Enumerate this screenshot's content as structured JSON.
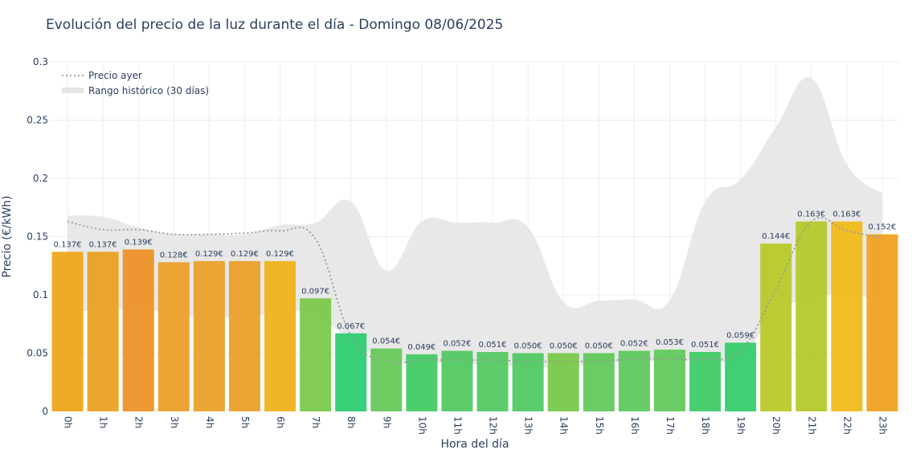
{
  "title": "Evolución del precio de la luz durante el día - Domingo 08/06/2025",
  "chart_data": {
    "type": "bar",
    "title": "Evolución del precio de la luz durante el día - Domingo 08/06/2025",
    "xlabel": "Hora del día",
    "ylabel": "Precio (€/kWh)",
    "ylim": [
      0,
      0.3
    ],
    "yticks": [
      0,
      0.05,
      0.1,
      0.15,
      0.2,
      0.25,
      0.3
    ],
    "ytick_labels": [
      "0",
      "0.05",
      "0.1",
      "0.15",
      "0.2",
      "0.25",
      "0.3"
    ],
    "grid": true,
    "legend_position": "top-left",
    "categories": [
      "0h",
      "1h",
      "2h",
      "3h",
      "4h",
      "5h",
      "6h",
      "7h",
      "8h",
      "9h",
      "10h",
      "11h",
      "12h",
      "13h",
      "14h",
      "15h",
      "16h",
      "17h",
      "18h",
      "19h",
      "20h",
      "21h",
      "22h",
      "23h"
    ],
    "series": [
      {
        "values": [
          0.137,
          0.137,
          0.139,
          0.128,
          0.129,
          0.129,
          0.129,
          0.097,
          0.067,
          0.054,
          0.049,
          0.052,
          0.051,
          0.05,
          0.05,
          0.05,
          0.052,
          0.053,
          0.051,
          0.059,
          0.144,
          0.163,
          0.163,
          0.152
        ],
        "labels": [
          "0.137€",
          "0.137€",
          "0.139€",
          "0.128€",
          "0.129€",
          "0.129€",
          "0.129€",
          "0.097€",
          "0.067€",
          "0.054€",
          "0.049€",
          "0.052€",
          "0.051€",
          "0.050€",
          "0.050€",
          "0.050€",
          "0.052€",
          "0.053€",
          "0.051€",
          "0.059€",
          "0.144€",
          "0.163€",
          "0.163€",
          "0.152€"
        ],
        "colors": [
          "#eea71a",
          "#eaa222",
          "#ec9228",
          "#eba02a",
          "#eaa12a",
          "#eaa02a",
          "#f0b21b",
          "#7bc94a",
          "#2ecc71",
          "#67c95b",
          "#45ca66",
          "#53c962",
          "#55c963",
          "#52c964",
          "#78c84b",
          "#62c95c",
          "#5ec95d",
          "#62c95c",
          "#40cb67",
          "#36cc6b",
          "#b9c92a",
          "#b5c82c",
          "#f0ba1a",
          "#efa221"
        ]
      },
      {
        "name": "Precio ayer",
        "values": [
          0.163,
          0.156,
          0.156,
          0.152,
          0.152,
          0.153,
          0.155,
          0.148,
          0.065,
          0.043,
          0.044,
          0.044,
          0.044,
          0.043,
          0.043,
          0.043,
          0.045,
          0.045,
          0.045,
          0.052,
          0.105,
          0.163,
          0.155,
          0.149
        ]
      },
      {
        "name": "Rango histórico (30 días)",
        "lower": [
          0.087,
          0.086,
          0.089,
          0.083,
          0.081,
          0.081,
          0.084,
          0.084,
          0.06,
          0.045,
          0.042,
          0.041,
          0.04,
          0.038,
          0.038,
          0.041,
          0.043,
          0.043,
          0.044,
          0.046,
          0.085,
          0.097,
          0.101,
          0.094
        ],
        "upper": [
          0.168,
          0.167,
          0.158,
          0.152,
          0.152,
          0.152,
          0.16,
          0.162,
          0.18,
          0.121,
          0.163,
          0.162,
          0.162,
          0.158,
          0.094,
          0.095,
          0.096,
          0.095,
          0.18,
          0.199,
          0.244,
          0.286,
          0.212,
          0.187
        ]
      }
    ],
    "colors": {
      "range_fill": "#e5e5e5",
      "prev_line": "#999999",
      "grid": "#ebedf1"
    }
  }
}
